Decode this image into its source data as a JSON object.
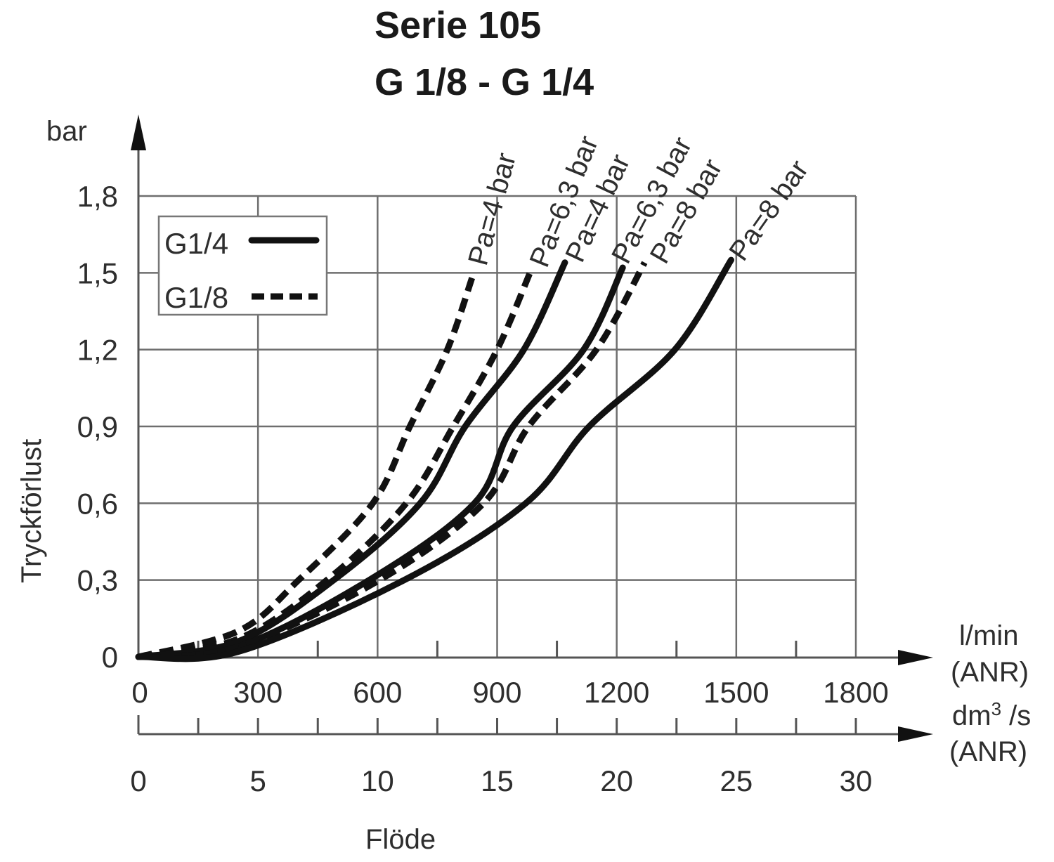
{
  "title": {
    "line1": "Serie  105",
    "line2": "G 1/8 - G 1/4"
  },
  "y_axis": {
    "unit": "bar",
    "label": "Tryckförlust",
    "ticks": [
      "0",
      "0,3",
      "0,6",
      "0,9",
      "1,2",
      "1,5",
      "1,8"
    ]
  },
  "x_axis_primary": {
    "unit_line1": "l/min",
    "unit_line2": "(ANR)",
    "ticks": [
      "0",
      "300",
      "600",
      "900",
      "1200",
      "1500",
      "1800"
    ]
  },
  "x_axis_secondary": {
    "unit_line1": "dm",
    "unit_sup": "3",
    "unit_line1b": " /s",
    "unit_line2": "(ANR)",
    "ticks": [
      "0",
      "5",
      "10",
      "15",
      "20",
      "25",
      "30"
    ]
  },
  "x_label": "Flöde",
  "legend": {
    "items": [
      {
        "label": "G1/4",
        "style": "solid"
      },
      {
        "label": "G1/8",
        "style": "dashed"
      }
    ]
  },
  "curve_labels": [
    "Pa=4 bar",
    "Pa=6,3 bar",
    "Pa=4 bar",
    "Pa=6,3 bar",
    "Pa=8 bar",
    "Pa=8 bar"
  ],
  "chart_data": {
    "type": "line",
    "title": "Serie 105 G 1/8 - G 1/4",
    "xlabel": "Flöde (l/min ANR)",
    "xlabel_secondary": "Flöde (dm³/s ANR)",
    "ylabel": "Tryckförlust (bar)",
    "xlim": [
      0,
      1800
    ],
    "ylim": [
      0,
      1.8
    ],
    "x_ticks": [
      0,
      300,
      600,
      900,
      1200,
      1500,
      1800
    ],
    "x_ticks_secondary": [
      0,
      5,
      10,
      15,
      20,
      25,
      30
    ],
    "y_ticks": [
      0,
      0.3,
      0.6,
      0.9,
      1.2,
      1.5,
      1.8
    ],
    "grid": true,
    "legend_position": "upper left",
    "series": [
      {
        "name": "G1/8 Pa=4 bar",
        "style": "dashed",
        "x": [
          0,
          250,
          402,
          588,
          681,
          775,
          837
        ],
        "y": [
          0,
          0.1,
          0.3,
          0.6,
          0.9,
          1.2,
          1.48
        ]
      },
      {
        "name": "G1/8 Pa=6,3 bar",
        "style": "dashed",
        "x": [
          0,
          250,
          473,
          672,
          790,
          900,
          985
        ],
        "y": [
          0,
          0.07,
          0.3,
          0.6,
          0.9,
          1.2,
          1.51
        ]
      },
      {
        "name": "G1/4 Pa=4 bar",
        "style": "solid",
        "x": [
          0,
          250,
          490,
          707,
          820,
          967,
          1070
        ],
        "y": [
          0,
          0.06,
          0.3,
          0.6,
          0.9,
          1.2,
          1.54
        ]
      },
      {
        "name": "G1/4 Pa=6,3 bar",
        "style": "solid",
        "x": [
          0,
          250,
          579,
          843,
          940,
          1117,
          1215
        ],
        "y": [
          0,
          0.04,
          0.3,
          0.6,
          0.9,
          1.2,
          1.52
        ]
      },
      {
        "name": "G1/8 Pa=8 bar",
        "style": "dashed",
        "x": [
          0,
          250,
          605,
          866,
          979,
          1149,
          1270
        ],
        "y": [
          0,
          0.04,
          0.3,
          0.6,
          0.9,
          1.2,
          1.54
        ]
      },
      {
        "name": "G1/4 Pa=8 bar",
        "style": "solid",
        "x": [
          0,
          250,
          667,
          972,
          1131,
          1346,
          1487
        ],
        "y": [
          0,
          0.02,
          0.3,
          0.6,
          0.9,
          1.2,
          1.55
        ]
      }
    ]
  }
}
